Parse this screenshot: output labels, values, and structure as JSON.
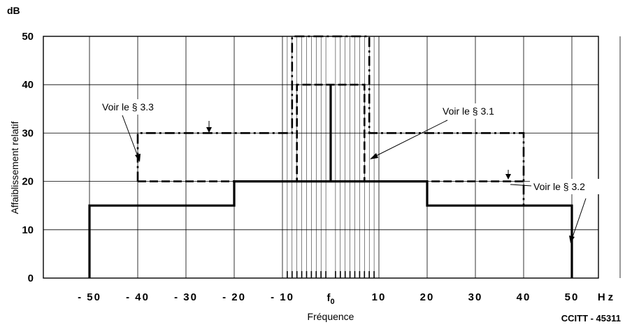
{
  "chart_data": {
    "type": "line",
    "y_unit": "dB",
    "ylabel": "Affaiblissement relatif",
    "xlabel": "Fréquence",
    "x_unit": "Hz",
    "x_center_label": "f0",
    "xlim": [
      -50,
      50
    ],
    "ylim": [
      0,
      50
    ],
    "x_ticks": [
      -50,
      -40,
      -30,
      -20,
      -10,
      10,
      20,
      30,
      40,
      50
    ],
    "x_tick_labels": [
      "- 50",
      "- 40",
      "- 30",
      "- 20",
      "- 10",
      "10",
      "20",
      "30",
      "40",
      "50"
    ],
    "y_ticks": [
      0,
      10,
      20,
      30,
      40,
      50
    ],
    "y_tick_labels": [
      "0",
      "10",
      "20",
      "30",
      "40",
      "50"
    ],
    "grid": true,
    "fine_grid_x": [
      -9,
      -8,
      -7,
      -6,
      -5,
      -4,
      -3,
      -2,
      -1,
      1,
      2,
      3,
      4,
      5,
      6,
      7,
      8,
      9
    ],
    "series": [
      {
        "style": "solid",
        "points": [
          [
            -50,
            0
          ],
          [
            -50,
            15
          ],
          [
            -20,
            15
          ],
          [
            -20,
            20
          ],
          [
            0,
            20
          ],
          [
            0,
            40
          ],
          [
            0,
            20
          ],
          [
            20,
            20
          ],
          [
            20,
            15
          ],
          [
            50,
            15
          ],
          [
            50,
            0
          ]
        ]
      },
      {
        "style": "dashed",
        "points": [
          [
            -40,
            20
          ],
          [
            -7,
            20
          ],
          [
            -7,
            40
          ],
          [
            7,
            40
          ],
          [
            7,
            20
          ],
          [
            40,
            20
          ]
        ]
      },
      {
        "style": "dash-dot",
        "points": [
          [
            -40,
            20
          ],
          [
            -40,
            30
          ],
          [
            -8,
            30
          ],
          [
            -8,
            50
          ],
          [
            8,
            50
          ],
          [
            8,
            30
          ],
          [
            40,
            30
          ],
          [
            40,
            15
          ]
        ]
      }
    ],
    "annotations": [
      {
        "text": "Voir le § 3.3"
      },
      {
        "text": "Voir le § 3.1"
      },
      {
        "text": "Voir le § 3.2"
      }
    ],
    "footer": "CCITT - 45311"
  }
}
